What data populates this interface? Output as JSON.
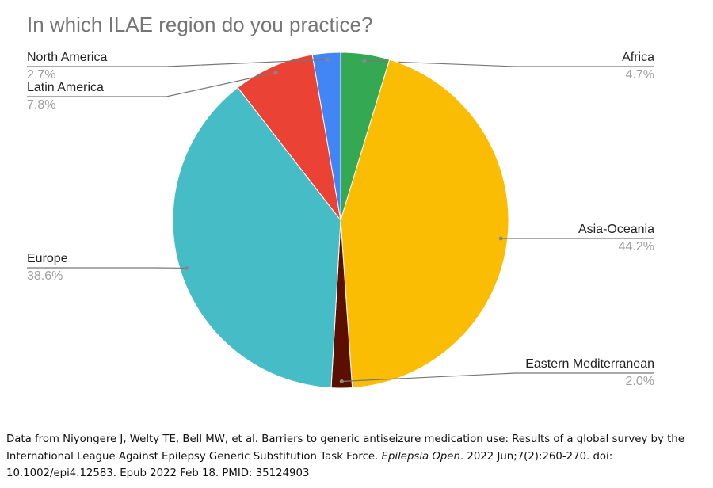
{
  "chart_data": {
    "type": "pie",
    "title": "In which ILAE region do you practice?",
    "categories": [
      "Africa",
      "Asia-Oceania",
      "Eastern Mediterranean",
      "Europe",
      "Latin America",
      "North America"
    ],
    "values": [
      4.7,
      44.2,
      2.0,
      38.6,
      7.8,
      2.7
    ],
    "value_labels": [
      "4.7%",
      "44.2%",
      "2.0%",
      "38.6%",
      "7.8%",
      "2.7%"
    ],
    "colors": [
      "#34a853",
      "#fbbc04",
      "#5b0f00",
      "#46bdc6",
      "#ea4335",
      "#4285f4"
    ]
  },
  "caption": {
    "before": "Data from Niyongere J, Welty TE, Bell MW, et al. Barriers to generic antiseizure medication use: Results of a global survey by the International League Against Epilepsy Generic Substitution Task Force. ",
    "journal": "Epilepsia Open",
    "after": ". 2022 Jun;7(2):260-270. doi: 10.1002/epi4.12583. Epub 2022 Feb 18. PMID: 35124903"
  }
}
